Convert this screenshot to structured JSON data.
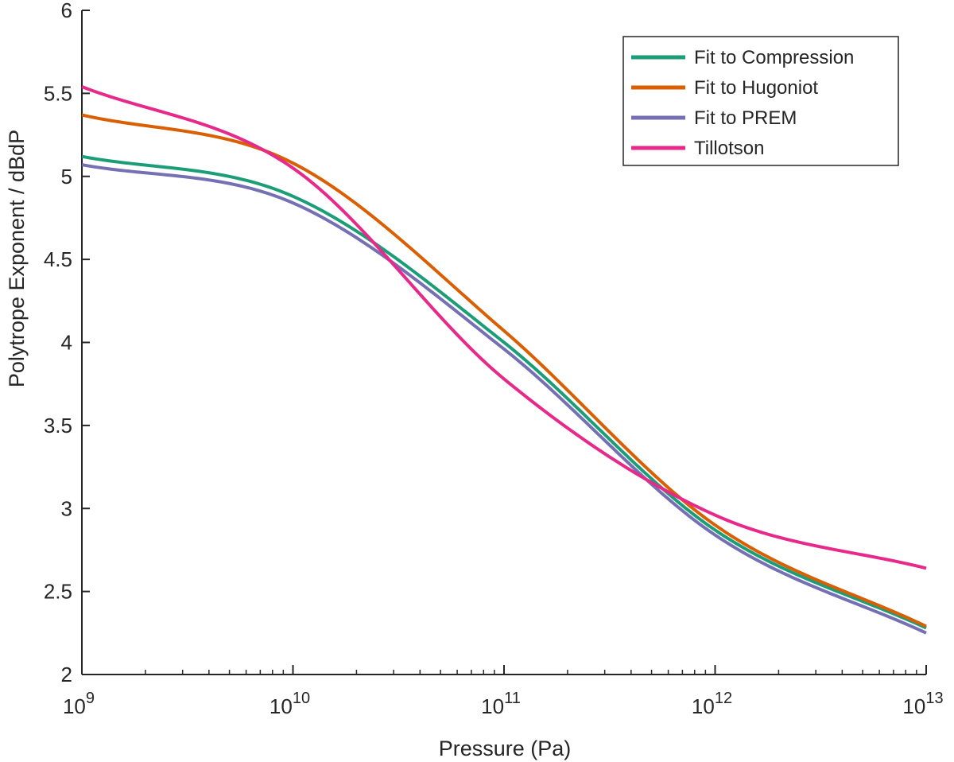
{
  "chart_data": {
    "type": "line",
    "title": "",
    "xlabel": "Pressure (Pa)",
    "ylabel": "Polytrope Exponent / dBdP",
    "xscale": "log",
    "xlim": [
      1000000000.0,
      10000000000000.0
    ],
    "ylim": [
      2,
      6
    ],
    "grid": false,
    "legend_location": "top-right",
    "x_ticks": [
      {
        "base": "10",
        "exp": "9",
        "value": 1000000000.0
      },
      {
        "base": "10",
        "exp": "10",
        "value": 10000000000.0
      },
      {
        "base": "10",
        "exp": "11",
        "value": 100000000000.0
      },
      {
        "base": "10",
        "exp": "12",
        "value": 1000000000000.0
      },
      {
        "base": "10",
        "exp": "13",
        "value": 10000000000000.0
      }
    ],
    "y_ticks": [
      {
        "label": "2",
        "value": 2
      },
      {
        "label": "2.5",
        "value": 2.5
      },
      {
        "label": "3",
        "value": 3
      },
      {
        "label": "3.5",
        "value": 3.5
      },
      {
        "label": "4",
        "value": 4
      },
      {
        "label": "4.5",
        "value": 4.5
      },
      {
        "label": "5",
        "value": 5
      },
      {
        "label": "5.5",
        "value": 5.5
      },
      {
        "label": "6",
        "value": 6
      }
    ],
    "x": [
      1000000000.0,
      10000000000.0,
      100000000000.0,
      1000000000000.0,
      10000000000000.0
    ],
    "series": [
      {
        "name": "Fit to Compression",
        "color": "#1b9e77",
        "values": [
          5.12,
          4.88,
          4.0,
          2.87,
          2.28
        ]
      },
      {
        "name": "Fit to Hugoniot",
        "color": "#d95f02",
        "values": [
          5.37,
          5.08,
          4.07,
          2.9,
          2.29
        ]
      },
      {
        "name": "Fit to PREM",
        "color": "#7570b3",
        "values": [
          5.07,
          4.84,
          3.96,
          2.84,
          2.25
        ]
      },
      {
        "name": "Tillotson",
        "color": "#e7298a",
        "values": [
          5.54,
          5.05,
          3.78,
          2.96,
          2.64
        ]
      }
    ]
  }
}
